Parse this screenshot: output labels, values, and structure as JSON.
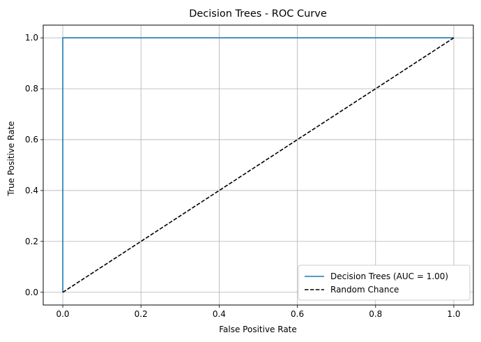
{
  "chart_data": {
    "type": "line",
    "title": "Decision Trees - ROC Curve",
    "xlabel": "False Positive Rate",
    "ylabel": "True Positive Rate",
    "xlim": [
      -0.05,
      1.05
    ],
    "ylim": [
      -0.05,
      1.05
    ],
    "xticks": [
      0.0,
      0.2,
      0.4,
      0.6,
      0.8,
      1.0
    ],
    "yticks": [
      0.0,
      0.2,
      0.4,
      0.6,
      0.8,
      1.0
    ],
    "xtick_labels": [
      "0.0",
      "0.2",
      "0.4",
      "0.6",
      "0.8",
      "1.0"
    ],
    "ytick_labels": [
      "0.0",
      "0.2",
      "0.4",
      "0.6",
      "0.8",
      "1.0"
    ],
    "grid": true,
    "legend_position": "lower-right",
    "series": [
      {
        "name": "Decision Trees (AUC = 1.00)",
        "color": "#1f77b4",
        "style": "solid",
        "x": [
          0.0,
          0.0,
          1.0
        ],
        "y": [
          0.0,
          1.0,
          1.0
        ]
      },
      {
        "name": "Random Chance",
        "color": "#000000",
        "style": "dashed",
        "x": [
          0.0,
          1.0
        ],
        "y": [
          0.0,
          1.0
        ]
      }
    ]
  }
}
